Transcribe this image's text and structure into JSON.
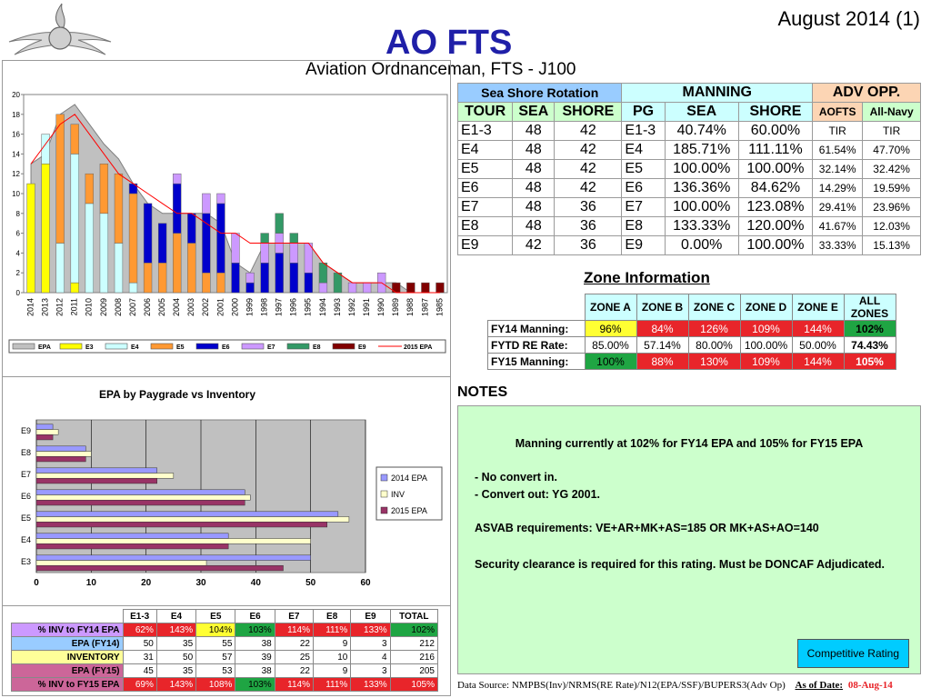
{
  "header": {
    "date_label": "August 2014 (1)",
    "title": "AO FTS",
    "subtitle": "Aviation Ordnanceman, FTS - J100"
  },
  "colors": {
    "title_blue": "#1f1fa8",
    "epa": "#c0c0c0",
    "e3": "#ffff00",
    "e4": "#ccffff",
    "e5": "#ff9933",
    "e6": "#0000cc",
    "e7": "#cc99ff",
    "e8": "#339966",
    "e9": "#800000",
    "line_2015": "#ff0000"
  },
  "chart_data": [
    {
      "type": "bar",
      "stacked": true,
      "categories": [
        "2014",
        "2013",
        "2012",
        "2011",
        "2010",
        "2009",
        "2008",
        "2007",
        "2006",
        "2005",
        "2004",
        "2003",
        "2002",
        "2001",
        "2000",
        "1999",
        "1998",
        "1997",
        "1996",
        "1995",
        "1994",
        "1993",
        "1992",
        "1991",
        "1990",
        "1989",
        "1988",
        "1987",
        "1985"
      ],
      "ylim": [
        0,
        20
      ],
      "yticks": [
        0,
        2,
        4,
        6,
        8,
        10,
        12,
        14,
        16,
        18,
        20
      ],
      "grid": false,
      "legend_position": "bottom",
      "area_series": {
        "name": "EPA",
        "values": [
          13,
          14,
          18,
          19,
          17,
          15,
          13.5,
          11,
          9,
          8,
          8,
          8,
          8,
          7,
          3,
          2,
          5,
          5,
          5,
          5,
          3,
          2,
          1,
          1,
          1,
          1,
          0,
          0,
          0
        ]
      },
      "series": [
        {
          "name": "E3",
          "values": [
            11,
            13,
            0,
            1,
            0,
            0,
            0,
            0,
            0,
            0,
            0,
            0,
            0,
            0,
            0,
            0,
            0,
            0,
            0,
            0,
            0,
            0,
            0,
            0,
            0,
            0,
            0,
            0,
            0
          ]
        },
        {
          "name": "E4",
          "values": [
            0,
            3,
            5,
            13,
            9,
            8,
            5,
            1,
            0,
            0,
            0,
            0,
            0,
            0,
            0,
            0,
            0,
            0,
            0,
            0,
            0,
            0,
            0,
            0,
            0,
            0,
            0,
            0,
            0
          ]
        },
        {
          "name": "E5",
          "values": [
            0,
            0,
            13,
            3,
            3,
            5,
            7,
            9,
            3,
            3,
            6,
            5,
            2,
            2,
            0,
            0,
            0,
            0,
            0,
            0,
            0,
            0,
            0,
            0,
            0,
            0,
            0,
            0,
            0
          ]
        },
        {
          "name": "E6",
          "values": [
            0,
            0,
            0,
            0,
            0,
            0,
            0,
            1,
            6,
            4,
            5,
            3,
            6,
            7,
            3,
            1,
            3,
            4,
            3,
            2,
            0,
            0,
            0,
            0,
            0,
            0,
            0,
            0,
            0
          ]
        },
        {
          "name": "E7",
          "values": [
            0,
            0,
            0,
            0,
            0,
            0,
            0,
            0,
            0,
            0,
            1,
            0,
            2,
            1,
            3,
            1,
            2,
            2,
            2,
            3,
            1,
            0,
            1,
            1,
            2,
            0,
            0,
            0,
            0
          ]
        },
        {
          "name": "E8",
          "values": [
            0,
            0,
            0,
            0,
            0,
            0,
            0,
            0,
            0,
            0,
            0,
            0,
            0,
            0,
            0,
            0,
            1,
            2,
            1,
            0,
            2,
            2,
            0,
            0,
            0,
            0,
            0,
            0,
            0
          ]
        },
        {
          "name": "E9",
          "values": [
            0,
            0,
            0,
            0,
            0,
            0,
            0,
            0,
            0,
            0,
            0,
            0,
            0,
            0,
            0,
            0,
            0,
            0,
            0,
            0,
            0,
            0,
            0,
            0,
            0,
            1,
            1,
            1,
            1
          ]
        }
      ],
      "line_series": {
        "name": "2015 EPA",
        "values": [
          13,
          15,
          17,
          18,
          16,
          14,
          12,
          11,
          10,
          9,
          8,
          8,
          7,
          6,
          6,
          5,
          5,
          5,
          5,
          5,
          3,
          2,
          1,
          1,
          1,
          0,
          0,
          0,
          0
        ]
      },
      "legend": [
        "EPA",
        "E3",
        "E4",
        "E5",
        "E6",
        "E7",
        "E8",
        "E9",
        "2015 EPA"
      ]
    },
    {
      "type": "bar",
      "orientation": "horizontal",
      "title": "EPA by Paygrade vs Inventory",
      "categories": [
        "E3",
        "E4",
        "E5",
        "E6",
        "E7",
        "E8",
        "E9"
      ],
      "xlim": [
        0,
        60
      ],
      "xticks": [
        0,
        10,
        20,
        30,
        40,
        50,
        60
      ],
      "legend_position": "right",
      "series": [
        {
          "name": "2014 EPA",
          "values": [
            50,
            35,
            55,
            38,
            22,
            9,
            3
          ]
        },
        {
          "name": "INV",
          "values": [
            31,
            50,
            57,
            39,
            25,
            10,
            4
          ]
        },
        {
          "name": "2015 EPA",
          "values": [
            45,
            35,
            53,
            38,
            22,
            9,
            3
          ]
        }
      ]
    }
  ],
  "sea_shore": {
    "group_header": "Sea Shore Rotation",
    "manning_header": "MANNING",
    "adv_header": "ADV OPP.",
    "cols": [
      "TOUR",
      "SEA",
      "SHORE",
      "PG",
      "SEA",
      "SHORE",
      "AOFTS",
      "All-Navy"
    ],
    "rows": [
      [
        "E1-3",
        "48",
        "42",
        "E1-3",
        "40.74%",
        "60.00%",
        "TIR",
        "TIR"
      ],
      [
        "E4",
        "48",
        "42",
        "E4",
        "185.71%",
        "111.11%",
        "61.54%",
        "47.70%"
      ],
      [
        "E5",
        "48",
        "42",
        "E5",
        "100.00%",
        "100.00%",
        "32.14%",
        "32.42%"
      ],
      [
        "E6",
        "48",
        "42",
        "E6",
        "136.36%",
        "84.62%",
        "14.29%",
        "19.59%"
      ],
      [
        "E7",
        "48",
        "36",
        "E7",
        "100.00%",
        "123.08%",
        "29.41%",
        "23.96%"
      ],
      [
        "E8",
        "48",
        "36",
        "E8",
        "133.33%",
        "120.00%",
        "41.67%",
        "12.03%"
      ],
      [
        "E9",
        "42",
        "36",
        "E9",
        "0.00%",
        "100.00%",
        "33.33%",
        "15.13%"
      ]
    ]
  },
  "zone": {
    "title": "Zone Information",
    "cols": [
      "ZONE A",
      "ZONE B",
      "ZONE C",
      "ZONE D",
      "ZONE E",
      "ALL ZONES"
    ],
    "rows": [
      {
        "label": "FY14 Manning:",
        "values": [
          "96%",
          "84%",
          "126%",
          "109%",
          "144%",
          "102%"
        ],
        "status": [
          "yel",
          "red",
          "red",
          "red",
          "red",
          "grn"
        ]
      },
      {
        "label": "FYTD RE Rate:",
        "values": [
          "85.00%",
          "57.14%",
          "80.00%",
          "100.00%",
          "50.00%",
          "74.43%"
        ],
        "status": [
          "",
          "",
          "",
          "",
          "",
          ""
        ]
      },
      {
        "label": "FY15 Manning:",
        "values": [
          "100%",
          "88%",
          "130%",
          "109%",
          "144%",
          "105%"
        ],
        "status": [
          "grn",
          "red",
          "red",
          "red",
          "red",
          "red"
        ]
      }
    ]
  },
  "notes": {
    "heading": "NOTES",
    "manning_line": "Manning currently at 102% for FY14 EPA and 105% for FY15 EPA",
    "bullet1": "-  No convert in.",
    "bullet2": "-  Convert out: YG 2001.",
    "asvab": "ASVAB requirements: VE+AR+MK+AS=185 OR MK+AS+AO=140",
    "security": "Security clearance is required for this rating.  Must be DONCAF Adjudicated.",
    "badge": "Competitive Rating"
  },
  "inventory": {
    "cols": [
      "E1-3",
      "E4",
      "E5",
      "E6",
      "E7",
      "E8",
      "E9",
      "TOTAL"
    ],
    "rows": [
      {
        "label": "% INV to FY14 EPA",
        "values": [
          "62%",
          "143%",
          "104%",
          "103%",
          "114%",
          "111%",
          "133%",
          "102%"
        ],
        "status": [
          "red",
          "red",
          "yel",
          "grn",
          "red",
          "red",
          "red",
          "grn"
        ],
        "label_bg": "#cc99ff"
      },
      {
        "label": "EPA (FY14)",
        "values": [
          "50",
          "35",
          "55",
          "38",
          "22",
          "9",
          "3",
          "212"
        ],
        "status": [
          "",
          "",
          "",
          "",
          "",
          "",
          "",
          ""
        ],
        "label_bg": "#99ccff"
      },
      {
        "label": "INVENTORY",
        "values": [
          "31",
          "50",
          "57",
          "39",
          "25",
          "10",
          "4",
          "216"
        ],
        "status": [
          "",
          "",
          "",
          "",
          "",
          "",
          "",
          ""
        ],
        "label_bg": "#ffff99"
      },
      {
        "label": "EPA (FY15)",
        "values": [
          "45",
          "35",
          "53",
          "38",
          "22",
          "9",
          "3",
          "205"
        ],
        "status": [
          "",
          "",
          "",
          "",
          "",
          "",
          "",
          ""
        ],
        "label_bg": "#cc6699"
      },
      {
        "label": "% INV to FY15 EPA",
        "values": [
          "69%",
          "143%",
          "108%",
          "103%",
          "114%",
          "111%",
          "133%",
          "105%"
        ],
        "status": [
          "red",
          "red",
          "red",
          "grn",
          "red",
          "red",
          "red",
          "red"
        ],
        "label_bg": "#cc6699"
      }
    ]
  },
  "footer": {
    "source": "Data Source: NMPBS(Inv)/NRMS(RE Rate)/N12(EPA/SSF)/BUPERS3(Adv Op)",
    "as_of_label": "As of Date:",
    "as_of_date": "08-Aug-14"
  }
}
